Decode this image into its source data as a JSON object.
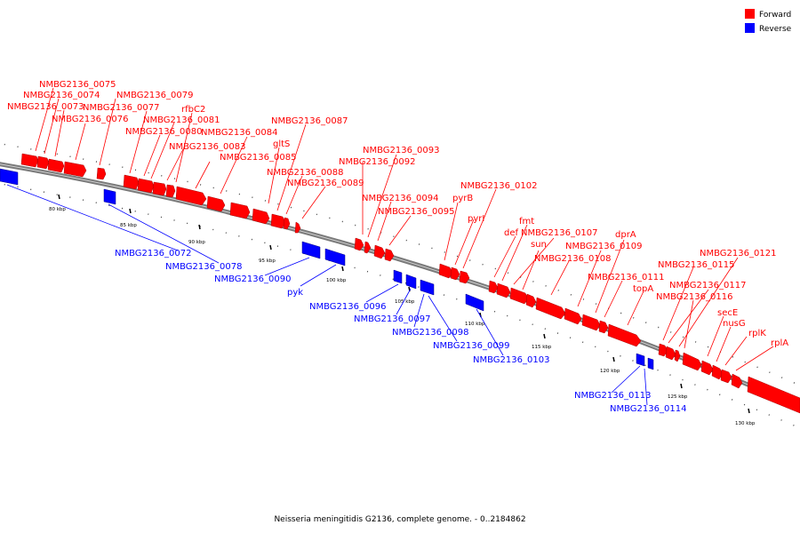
{
  "caption": "Neisseria meningitidis G2136, complete genome. - 0..2184862",
  "legend": [
    {
      "label": "Forward",
      "color": "#ff0000"
    },
    {
      "label": "Reverse",
      "color": "#0000ff"
    }
  ],
  "colors": {
    "forward": "#ff0000",
    "reverse": "#0000ff",
    "backbone": "#7a7a7a"
  },
  "ticks": [
    "80 kbp",
    "85 kbp",
    "90 kbp",
    "95 kbp",
    "100 kbp",
    "105 kbp",
    "110 kbp",
    "115 kbp",
    "120 kbp",
    "125 kbp",
    "130 kbp"
  ],
  "forward_labels": [
    "NMBG2136_0075",
    "NMBG2136_0074",
    "NMBG2136_0073",
    "NMBG2136_0076",
    "NMBG2136_0079",
    "NMBG2136_0077",
    "rfbC2",
    "NMBG2136_0081",
    "NMBG2136_0080",
    "NMBG2136_0084",
    "NMBG2136_0087",
    "NMBG2136_0083",
    "gltS",
    "NMBG2136_0085",
    "NMBG2136_0088",
    "NMBG2136_0089",
    "NMBG2136_0093",
    "NMBG2136_0092",
    "NMBG2136_0102",
    "pyrB",
    "NMBG2136_0094",
    "NMBG2136_0095",
    "pyrI",
    "fmt",
    "def",
    "NMBG2136_0107",
    "sun",
    "dprA",
    "NMBG2136_0109",
    "NMBG2136_0108",
    "NMBG2136_0121",
    "NMBG2136_0115",
    "NMBG2136_0111",
    "topA",
    "NMBG2136_0117",
    "NMBG2136_0116",
    "secE",
    "nusG",
    "rplK",
    "rplA"
  ],
  "reverse_labels": [
    "NMBG2136_0072",
    "NMBG2136_0078",
    "NMBG2136_0090",
    "pyk",
    "NMBG2136_0096",
    "NMBG2136_0097",
    "NMBG2136_0098",
    "NMBG2136_0099",
    "NMBG2136_0103",
    "NMBG2136_0113",
    "NMBG2136_0114"
  ]
}
